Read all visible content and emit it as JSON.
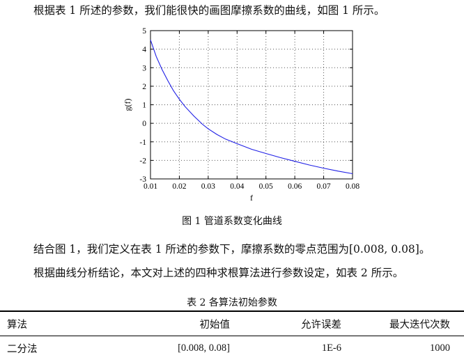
{
  "text": {
    "intro": "根据表 1 所述的参数，我们能很快的画图摩擦系数的曲线，如图 1 所示。",
    "figure_caption": "图 1  管道系数变化曲线",
    "para2": "结合图 1，我们定义在表 1 所述的参数下，摩擦系数的零点范围为[0.008, 0.08]。",
    "para3": "根据曲线分析结论，本文对上述的四种求根算法进行参数设定，如表 2 所示。",
    "table_caption": "表 2  各算法初始参数"
  },
  "chart_data": {
    "type": "line",
    "xlabel": "f",
    "ylabel": "g(f)",
    "xlim": [
      0.01,
      0.08
    ],
    "ylim": [
      -3,
      5
    ],
    "xticks": [
      "0.01",
      "0.02",
      "0.03",
      "0.04",
      "0.05",
      "0.06",
      "0.07",
      "0.08"
    ],
    "yticks": [
      "5",
      "4",
      "3",
      "2",
      "1",
      "0",
      "-1",
      "-2",
      "-3"
    ],
    "grid": true,
    "series_color": "#1f1fe6",
    "series": [
      {
        "x": [
          0.01,
          0.012,
          0.014,
          0.016,
          0.018,
          0.02,
          0.022,
          0.025,
          0.028,
          0.03,
          0.033,
          0.036,
          0.04,
          0.045,
          0.05,
          0.055,
          0.06,
          0.065,
          0.07,
          0.075,
          0.08
        ],
        "y": [
          4.5,
          3.6,
          2.9,
          2.3,
          1.75,
          1.3,
          0.9,
          0.4,
          -0.05,
          -0.3,
          -0.6,
          -0.85,
          -1.1,
          -1.4,
          -1.63,
          -1.85,
          -2.05,
          -2.25,
          -2.42,
          -2.58,
          -2.72
        ]
      }
    ]
  },
  "table": {
    "headers": [
      "算法",
      "初始值",
      "允许误差",
      "最大迭代次数"
    ],
    "rows": [
      [
        "二分法",
        "[0.008, 0.08]",
        "1E-6",
        "1000"
      ]
    ]
  }
}
